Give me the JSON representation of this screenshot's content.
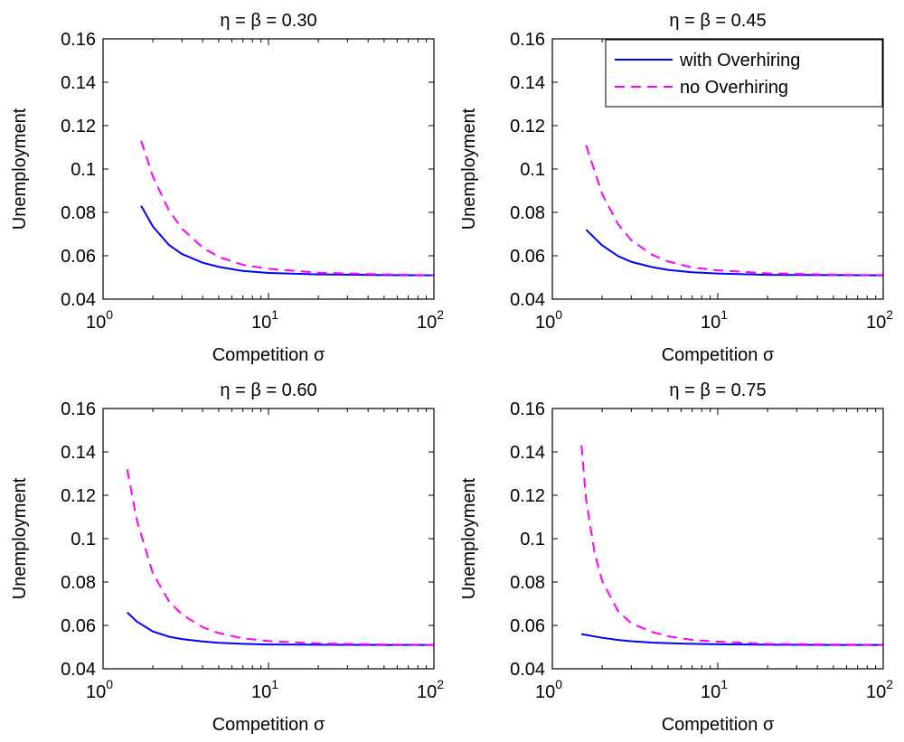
{
  "chart_data": [
    {
      "type": "line",
      "title": "η = β = 0.30",
      "xlabel": "Competition σ",
      "ylabel": "Unemployment",
      "xscale": "log",
      "xlim": [
        1,
        100
      ],
      "ylim": [
        0.04,
        0.16
      ],
      "xticks": [
        {
          "base": "10",
          "exp": "0"
        },
        {
          "base": "10",
          "exp": "1"
        },
        {
          "base": "10",
          "exp": "2"
        }
      ],
      "yticks": [
        "0.04",
        "0.06",
        "0.08",
        "0.1",
        "0.12",
        "0.14",
        "0.16"
      ],
      "grid": false,
      "series": [
        {
          "name": "with Overhiring",
          "color": "#0000ff",
          "style": "solid",
          "x": [
            1.7,
            2,
            2.5,
            3,
            4,
            5,
            7,
            10,
            20,
            50,
            100
          ],
          "y": [
            0.083,
            0.0735,
            0.065,
            0.0608,
            0.0568,
            0.0549,
            0.053,
            0.0521,
            0.0514,
            0.0511,
            0.051
          ]
        },
        {
          "name": "no Overhiring",
          "color": "#ff00ff",
          "style": "dashed",
          "x": [
            1.7,
            2,
            2.5,
            3,
            4,
            5,
            7,
            10,
            20,
            50,
            100
          ],
          "y": [
            0.113,
            0.0965,
            0.081,
            0.0725,
            0.0638,
            0.0595,
            0.0558,
            0.054,
            0.0522,
            0.0514,
            0.0511
          ]
        }
      ]
    },
    {
      "type": "line",
      "title": "η = β = 0.45",
      "xlabel": "Competition σ",
      "ylabel": "Unemployment",
      "xscale": "log",
      "xlim": [
        1,
        100
      ],
      "ylim": [
        0.04,
        0.16
      ],
      "xticks": [
        {
          "base": "10",
          "exp": "0"
        },
        {
          "base": "10",
          "exp": "1"
        },
        {
          "base": "10",
          "exp": "2"
        }
      ],
      "yticks": [
        "0.04",
        "0.06",
        "0.08",
        "0.1",
        "0.12",
        "0.14",
        "0.16"
      ],
      "grid": false,
      "legend": {
        "position": "top-right",
        "entries": [
          "with Overhiring",
          "no Overhiring"
        ]
      },
      "series": [
        {
          "name": "with Overhiring",
          "color": "#0000ff",
          "style": "solid",
          "x": [
            1.6,
            2,
            2.5,
            3,
            4,
            5,
            7,
            10,
            20,
            50,
            100
          ],
          "y": [
            0.072,
            0.0648,
            0.0598,
            0.0572,
            0.0548,
            0.0535,
            0.0524,
            0.0518,
            0.0512,
            0.0511,
            0.051
          ]
        },
        {
          "name": "no Overhiring",
          "color": "#ff00ff",
          "style": "dashed",
          "x": [
            1.6,
            2,
            2.5,
            3,
            4,
            5,
            7,
            10,
            20,
            50,
            100
          ],
          "y": [
            0.111,
            0.0885,
            0.0745,
            0.0672,
            0.0605,
            0.0574,
            0.0546,
            0.0533,
            0.0519,
            0.0513,
            0.0511
          ]
        }
      ]
    },
    {
      "type": "line",
      "title": "η = β = 0.60",
      "xlabel": "Competition σ",
      "ylabel": "Unemployment",
      "xscale": "log",
      "xlim": [
        1,
        100
      ],
      "ylim": [
        0.04,
        0.16
      ],
      "xticks": [
        {
          "base": "10",
          "exp": "0"
        },
        {
          "base": "10",
          "exp": "1"
        },
        {
          "base": "10",
          "exp": "2"
        }
      ],
      "yticks": [
        "0.04",
        "0.06",
        "0.08",
        "0.1",
        "0.12",
        "0.14",
        "0.16"
      ],
      "grid": false,
      "series": [
        {
          "name": "with Overhiring",
          "color": "#0000ff",
          "style": "solid",
          "x": [
            1.4,
            1.6,
            2,
            2.5,
            3,
            4,
            5,
            7,
            10,
            20,
            50,
            100
          ],
          "y": [
            0.066,
            0.0618,
            0.0572,
            0.0548,
            0.0537,
            0.0526,
            0.052,
            0.0515,
            0.0512,
            0.0511,
            0.051,
            0.051
          ]
        },
        {
          "name": "no Overhiring",
          "color": "#ff00ff",
          "style": "dashed",
          "x": [
            1.4,
            1.6,
            2,
            2.5,
            3,
            4,
            5,
            7,
            10,
            20,
            50,
            100
          ],
          "y": [
            0.132,
            0.1085,
            0.084,
            0.0712,
            0.065,
            0.0592,
            0.0565,
            0.054,
            0.0528,
            0.0517,
            0.0512,
            0.0511
          ]
        }
      ]
    },
    {
      "type": "line",
      "title": "η = β = 0.75",
      "xlabel": "Competition σ",
      "ylabel": "Unemployment",
      "xscale": "log",
      "xlim": [
        1,
        100
      ],
      "ylim": [
        0.04,
        0.16
      ],
      "xticks": [
        {
          "base": "10",
          "exp": "0"
        },
        {
          "base": "10",
          "exp": "1"
        },
        {
          "base": "10",
          "exp": "2"
        }
      ],
      "yticks": [
        "0.04",
        "0.06",
        "0.08",
        "0.1",
        "0.12",
        "0.14",
        "0.16"
      ],
      "grid": false,
      "series": [
        {
          "name": "with Overhiring",
          "color": "#0000ff",
          "style": "solid",
          "x": [
            1.5,
            2,
            2.5,
            3,
            4,
            5,
            7,
            10,
            20,
            50,
            100
          ],
          "y": [
            0.056,
            0.0543,
            0.0533,
            0.0527,
            0.0521,
            0.0518,
            0.0515,
            0.0513,
            0.0511,
            0.051,
            0.051
          ]
        },
        {
          "name": "no Overhiring",
          "color": "#ff00ff",
          "style": "dashed",
          "x": [
            1.5,
            1.6,
            1.8,
            2,
            2.5,
            3,
            4,
            5,
            7,
            10,
            20,
            50,
            100
          ],
          "y": [
            0.143,
            0.118,
            0.0935,
            0.0805,
            0.0665,
            0.061,
            0.057,
            0.055,
            0.0533,
            0.0525,
            0.0515,
            0.0512,
            0.0511
          ]
        }
      ]
    }
  ]
}
